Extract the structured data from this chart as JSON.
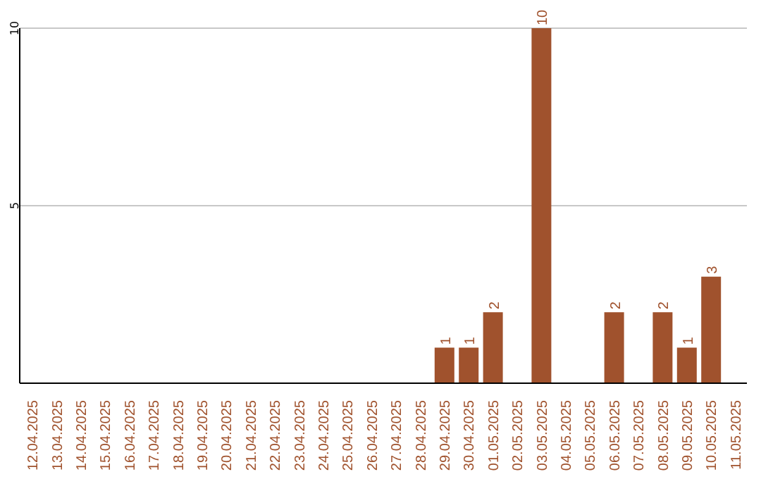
{
  "chart_data": {
    "type": "bar",
    "categories": [
      "12.04.2025",
      "13.04.2025",
      "14.04.2025",
      "15.04.2025",
      "16.04.2025",
      "17.04.2025",
      "18.04.2025",
      "19.04.2025",
      "20.04.2025",
      "21.04.2025",
      "22.04.2025",
      "23.04.2025",
      "24.04.2025",
      "25.04.2025",
      "26.04.2025",
      "27.04.2025",
      "28.04.2025",
      "29.04.2025",
      "30.04.2025",
      "01.05.2025",
      "02.05.2025",
      "03.05.2025",
      "04.05.2025",
      "05.05.2025",
      "06.05.2025",
      "07.05.2025",
      "08.05.2025",
      "09.05.2025",
      "10.05.2025",
      "11.05.2025"
    ],
    "values": [
      0,
      0,
      0,
      0,
      0,
      0,
      0,
      0,
      0,
      0,
      0,
      0,
      0,
      0,
      0,
      0,
      0,
      1,
      1,
      2,
      0,
      10,
      0,
      0,
      2,
      0,
      2,
      1,
      3,
      0
    ],
    "value_labels": [
      null,
      null,
      null,
      null,
      null,
      null,
      null,
      null,
      null,
      null,
      null,
      null,
      null,
      null,
      null,
      null,
      null,
      "1",
      "1",
      "2",
      null,
      "10",
      null,
      null,
      "2",
      null,
      "2",
      "1",
      "3",
      null
    ],
    "color": "#a0522d",
    "ylim": [
      0,
      10
    ],
    "yticks": [
      5,
      10
    ],
    "grid": "y"
  }
}
